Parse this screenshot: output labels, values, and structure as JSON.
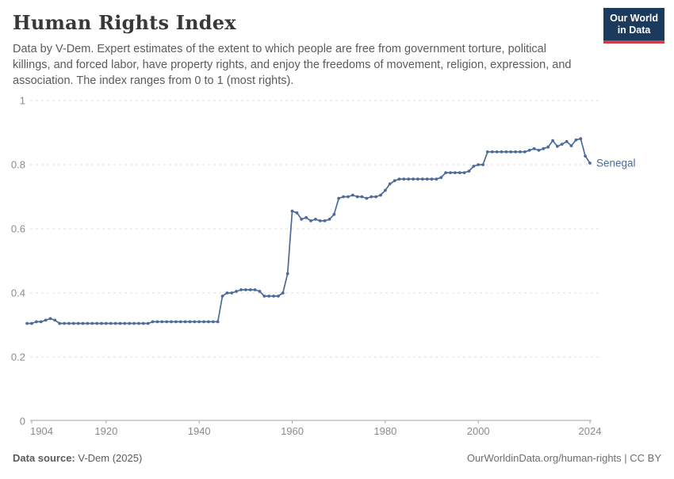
{
  "header": {
    "title": "Human Rights Index",
    "subtitle": "Data by V-Dem. Expert estimates of the extent to which people are free from government torture, political killings, and forced labor, have property rights, and enjoy the freedoms of movement, religion, expression, and association. The index ranges from 0 to 1 (most rights).",
    "logo": {
      "line1": "Our World",
      "line2": "in Data",
      "bg": "#1b3a5c",
      "accent": "#d13d4e"
    }
  },
  "chart_data": {
    "type": "line",
    "title": "Human Rights Index",
    "xlabel": "",
    "ylabel": "",
    "xlim": [
      1903,
      2024
    ],
    "ylim": [
      0,
      1
    ],
    "grid": "horizontal-dashed",
    "legend_position": "end-of-line-label",
    "xticks": [
      1904,
      1920,
      1940,
      1960,
      1980,
      2000,
      2024
    ],
    "yticks": [
      0,
      0.2,
      0.4,
      0.6,
      0.8,
      1
    ],
    "line_color": "#4C6A9C",
    "axis_color": "#a6a6a6",
    "grid_color": "#dcdcdc",
    "tick_label_color": "#8b8b8b",
    "series": [
      {
        "name": "Senegal",
        "color": "#4C6A9C",
        "points": [
          [
            1903,
            0.305
          ],
          [
            1904,
            0.305
          ],
          [
            1905,
            0.31
          ],
          [
            1906,
            0.31
          ],
          [
            1907,
            0.315
          ],
          [
            1908,
            0.32
          ],
          [
            1909,
            0.315
          ],
          [
            1910,
            0.305
          ],
          [
            1911,
            0.305
          ],
          [
            1912,
            0.305
          ],
          [
            1913,
            0.305
          ],
          [
            1914,
            0.305
          ],
          [
            1915,
            0.305
          ],
          [
            1916,
            0.305
          ],
          [
            1917,
            0.305
          ],
          [
            1918,
            0.305
          ],
          [
            1919,
            0.305
          ],
          [
            1920,
            0.305
          ],
          [
            1921,
            0.305
          ],
          [
            1922,
            0.305
          ],
          [
            1923,
            0.305
          ],
          [
            1924,
            0.305
          ],
          [
            1925,
            0.305
          ],
          [
            1926,
            0.305
          ],
          [
            1927,
            0.305
          ],
          [
            1928,
            0.305
          ],
          [
            1929,
            0.305
          ],
          [
            1930,
            0.31
          ],
          [
            1931,
            0.31
          ],
          [
            1932,
            0.31
          ],
          [
            1933,
            0.31
          ],
          [
            1934,
            0.31
          ],
          [
            1935,
            0.31
          ],
          [
            1936,
            0.31
          ],
          [
            1937,
            0.31
          ],
          [
            1938,
            0.31
          ],
          [
            1939,
            0.31
          ],
          [
            1940,
            0.31
          ],
          [
            1941,
            0.31
          ],
          [
            1942,
            0.31
          ],
          [
            1943,
            0.31
          ],
          [
            1944,
            0.31
          ],
          [
            1945,
            0.39
          ],
          [
            1946,
            0.4
          ],
          [
            1947,
            0.4
          ],
          [
            1948,
            0.405
          ],
          [
            1949,
            0.41
          ],
          [
            1950,
            0.41
          ],
          [
            1951,
            0.41
          ],
          [
            1952,
            0.41
          ],
          [
            1953,
            0.405
          ],
          [
            1954,
            0.39
          ],
          [
            1955,
            0.39
          ],
          [
            1956,
            0.39
          ],
          [
            1957,
            0.39
          ],
          [
            1958,
            0.4
          ],
          [
            1959,
            0.46
          ],
          [
            1960,
            0.655
          ],
          [
            1961,
            0.65
          ],
          [
            1962,
            0.63
          ],
          [
            1963,
            0.635
          ],
          [
            1964,
            0.625
          ],
          [
            1965,
            0.63
          ],
          [
            1966,
            0.625
          ],
          [
            1967,
            0.625
          ],
          [
            1968,
            0.63
          ],
          [
            1969,
            0.645
          ],
          [
            1970,
            0.695
          ],
          [
            1971,
            0.7
          ],
          [
            1972,
            0.7
          ],
          [
            1973,
            0.705
          ],
          [
            1974,
            0.7
          ],
          [
            1975,
            0.7
          ],
          [
            1976,
            0.695
          ],
          [
            1977,
            0.7
          ],
          [
            1978,
            0.7
          ],
          [
            1979,
            0.705
          ],
          [
            1980,
            0.72
          ],
          [
            1981,
            0.74
          ],
          [
            1982,
            0.75
          ],
          [
            1983,
            0.755
          ],
          [
            1984,
            0.755
          ],
          [
            1985,
            0.755
          ],
          [
            1986,
            0.755
          ],
          [
            1987,
            0.755
          ],
          [
            1988,
            0.755
          ],
          [
            1989,
            0.755
          ],
          [
            1990,
            0.755
          ],
          [
            1991,
            0.755
          ],
          [
            1992,
            0.76
          ],
          [
            1993,
            0.775
          ],
          [
            1994,
            0.775
          ],
          [
            1995,
            0.775
          ],
          [
            1996,
            0.775
          ],
          [
            1997,
            0.775
          ],
          [
            1998,
            0.78
          ],
          [
            1999,
            0.795
          ],
          [
            2000,
            0.8
          ],
          [
            2001,
            0.8
          ],
          [
            2002,
            0.84
          ],
          [
            2003,
            0.84
          ],
          [
            2004,
            0.84
          ],
          [
            2005,
            0.84
          ],
          [
            2006,
            0.84
          ],
          [
            2007,
            0.84
          ],
          [
            2008,
            0.84
          ],
          [
            2009,
            0.84
          ],
          [
            2010,
            0.84
          ],
          [
            2011,
            0.845
          ],
          [
            2012,
            0.85
          ],
          [
            2013,
            0.845
          ],
          [
            2014,
            0.85
          ],
          [
            2015,
            0.855
          ],
          [
            2016,
            0.875
          ],
          [
            2017,
            0.857
          ],
          [
            2018,
            0.864
          ],
          [
            2019,
            0.872
          ],
          [
            2020,
            0.859
          ],
          [
            2021,
            0.877
          ],
          [
            2022,
            0.881
          ],
          [
            2023,
            0.827
          ],
          [
            2024,
            0.805
          ]
        ]
      }
    ]
  },
  "footer": {
    "source_label": "Data source:",
    "source_value": " V-Dem (2025)",
    "link": "OurWorldinData.org/human-rights | CC BY"
  }
}
